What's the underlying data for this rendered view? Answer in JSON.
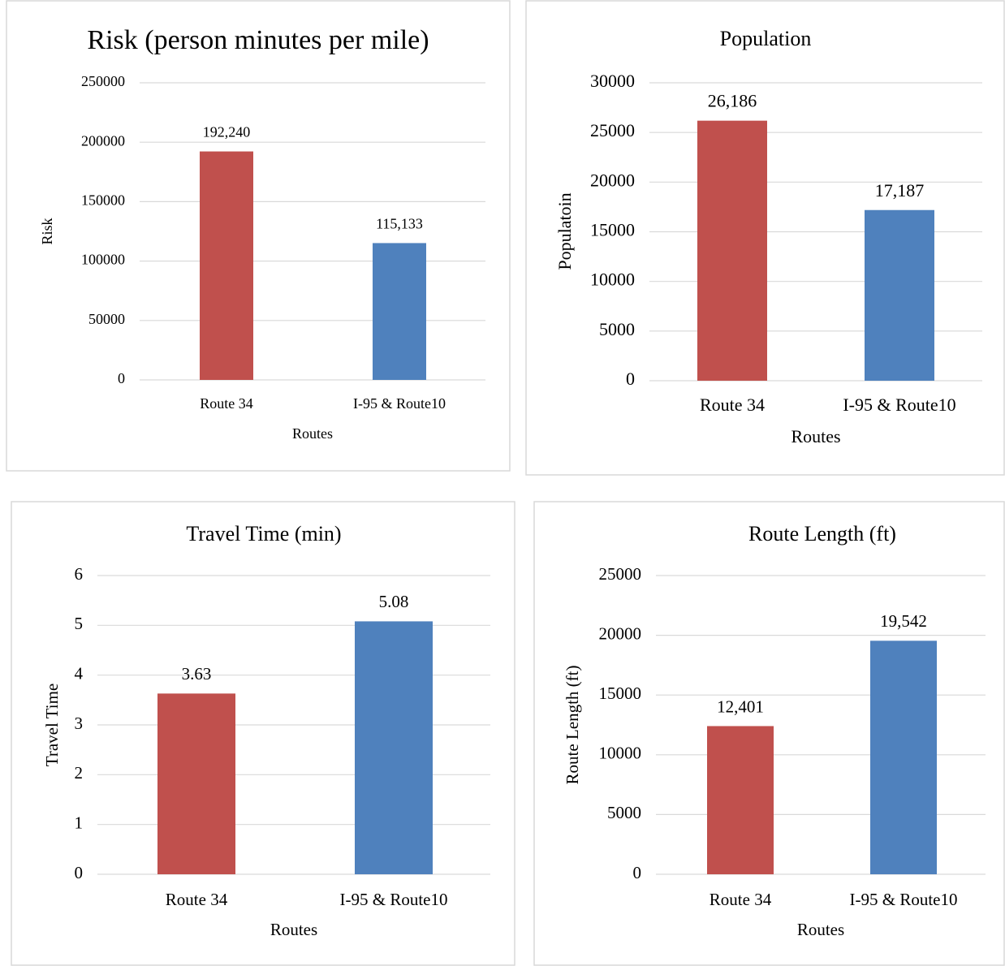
{
  "chart_data": [
    {
      "type": "bar",
      "title": "Risk  (person minutes per mile)",
      "x_label": "Routes",
      "y_label": "Risk",
      "categories": [
        "Route 34",
        "I-95 & Route10"
      ],
      "values": [
        192240,
        115133
      ],
      "value_labels": [
        "192,240",
        "115,133"
      ],
      "colors": [
        "#c0504d",
        "#4f81bd"
      ],
      "ylim": [
        0,
        250000
      ],
      "yticks": [
        0,
        50000,
        100000,
        150000,
        200000,
        250000
      ],
      "grid": true
    },
    {
      "type": "bar",
      "title": "Population",
      "x_label": "Routes",
      "y_label": "Populatoin",
      "categories": [
        "Route 34",
        "I-95 & Route10"
      ],
      "values": [
        26186,
        17187
      ],
      "value_labels": [
        "26,186",
        "17,187"
      ],
      "colors": [
        "#c0504d",
        "#4f81bd"
      ],
      "ylim": [
        0,
        30000
      ],
      "yticks": [
        0,
        5000,
        10000,
        15000,
        20000,
        25000,
        30000
      ],
      "grid": true
    },
    {
      "type": "bar",
      "title": "Travel Time (min)",
      "x_label": "Routes",
      "y_label": "Travel Time",
      "categories": [
        "Route 34",
        "I-95 & Route10"
      ],
      "values": [
        3.63,
        5.08
      ],
      "colors": [
        "#c0504d",
        "#4f81bd"
      ],
      "ylim": [
        0,
        6
      ],
      "yticks": [
        0,
        1,
        2,
        3,
        4,
        5,
        6
      ],
      "grid": true
    },
    {
      "type": "bar",
      "title": "Route Length (ft)",
      "x_label": "Routes",
      "y_label": "Route Length (ft)",
      "categories": [
        "Route 34",
        "I-95 & Route10"
      ],
      "values": [
        12401,
        19542
      ],
      "value_labels": [
        "12,401",
        "19,542"
      ],
      "colors": [
        "#c0504d",
        "#4f81bd"
      ],
      "ylim": [
        0,
        25000
      ],
      "yticks": [
        0,
        5000,
        10000,
        15000,
        20000,
        25000
      ],
      "grid": true
    }
  ]
}
